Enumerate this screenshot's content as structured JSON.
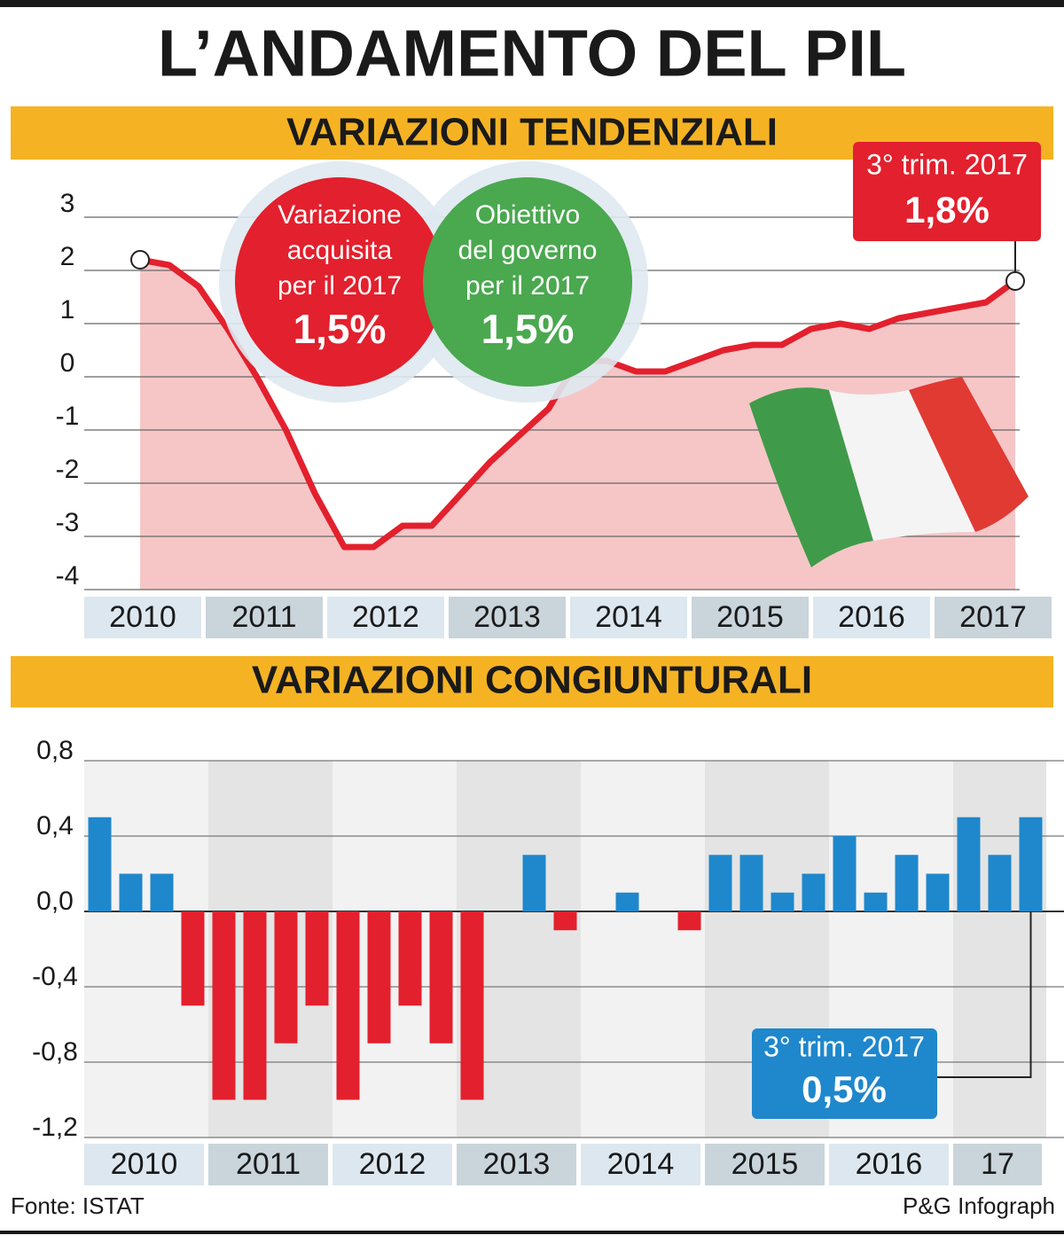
{
  "title": "L’ANDAMENTO DEL PIL",
  "source": "Fonte: ISTAT",
  "credit": "P&G Infograph",
  "chart_data": [
    {
      "type": "area",
      "title": "VARIAZIONI TENDENZIALI",
      "categories": [
        "2010",
        null,
        null,
        null,
        "2011",
        null,
        null,
        null,
        "2012",
        null,
        null,
        null,
        "2013",
        null,
        null,
        null,
        "2014",
        null,
        null,
        null,
        "2015",
        null,
        null,
        null,
        "2016",
        null,
        null,
        null,
        "2017",
        null,
        null
      ],
      "values": [
        2.2,
        2.1,
        1.7,
        0.9,
        0.0,
        -1.0,
        -2.2,
        -3.2,
        -3.2,
        -2.8,
        -2.8,
        -2.2,
        -1.6,
        -1.1,
        -0.6,
        0.3,
        0.3,
        0.1,
        0.1,
        0.3,
        0.5,
        0.6,
        0.6,
        0.9,
        1.0,
        0.9,
        1.1,
        1.2,
        1.3,
        1.4,
        1.8
      ],
      "value_labels": [
        null,
        null,
        null,
        null,
        null,
        null,
        null,
        null,
        null,
        null,
        null,
        null,
        null,
        null,
        null,
        null,
        null,
        null,
        null,
        null,
        null,
        null,
        null,
        null,
        null,
        null,
        null,
        null,
        null,
        null,
        "1,8%"
      ],
      "callout": "3° trim. 2017",
      "color": "#e3202d",
      "fill": "#f6c6c7",
      "ylim": [
        -4,
        3
      ],
      "yticks": [
        3,
        2,
        1,
        0,
        -1,
        -2,
        -3,
        -4
      ],
      "grid": true,
      "annotations": [
        {
          "text": [
            "Variazione",
            "acquisita",
            "per il 2017"
          ],
          "label": "1,5%",
          "color": "#e3202d"
        },
        {
          "text": [
            "Obiettivo",
            "del governo",
            "per il 2017"
          ],
          "label": "1,5%",
          "color": "#4aa84f"
        }
      ]
    },
    {
      "type": "bar",
      "title": "VARIAZIONI CONGIUNTURALI",
      "categories": [
        "2010",
        null,
        null,
        null,
        "2011",
        null,
        null,
        null,
        "2012",
        null,
        null,
        null,
        "2013",
        null,
        null,
        null,
        "2014",
        null,
        null,
        null,
        "2015",
        null,
        null,
        null,
        "2016",
        null,
        null,
        null,
        "17",
        null,
        null
      ],
      "values": [
        0.5,
        0.2,
        0.2,
        -0.5,
        -1.0,
        -1.0,
        -0.7,
        -0.5,
        -1.0,
        -0.7,
        -0.5,
        -0.7,
        -1.0,
        0.0,
        0.3,
        -0.1,
        0.0,
        0.1,
        0.0,
        -0.1,
        0.3,
        0.3,
        0.1,
        0.2,
        0.4,
        0.1,
        0.3,
        0.2,
        0.5,
        0.3,
        0.5
      ],
      "value_labels": [
        null,
        null,
        null,
        null,
        null,
        null,
        null,
        null,
        null,
        null,
        null,
        null,
        null,
        null,
        null,
        null,
        null,
        null,
        null,
        null,
        null,
        null,
        null,
        null,
        null,
        null,
        null,
        null,
        null,
        null,
        "0,5%"
      ],
      "callout": "3° trim. 2017",
      "color": "#1f87cc",
      "negative_color": "#e3202d",
      "ylim": [
        -1.2,
        0.8
      ],
      "yticks": [
        {
          "value": 0.8,
          "label": "0,8"
        },
        {
          "value": 0.4,
          "label": "0,4"
        },
        {
          "value": 0.0,
          "label": "0,0"
        },
        {
          "value": -0.4,
          "label": "-0,4"
        },
        {
          "value": -0.8,
          "label": "-0,8"
        },
        {
          "value": -1.2,
          "label": "-1,2"
        }
      ],
      "grid": true
    }
  ]
}
